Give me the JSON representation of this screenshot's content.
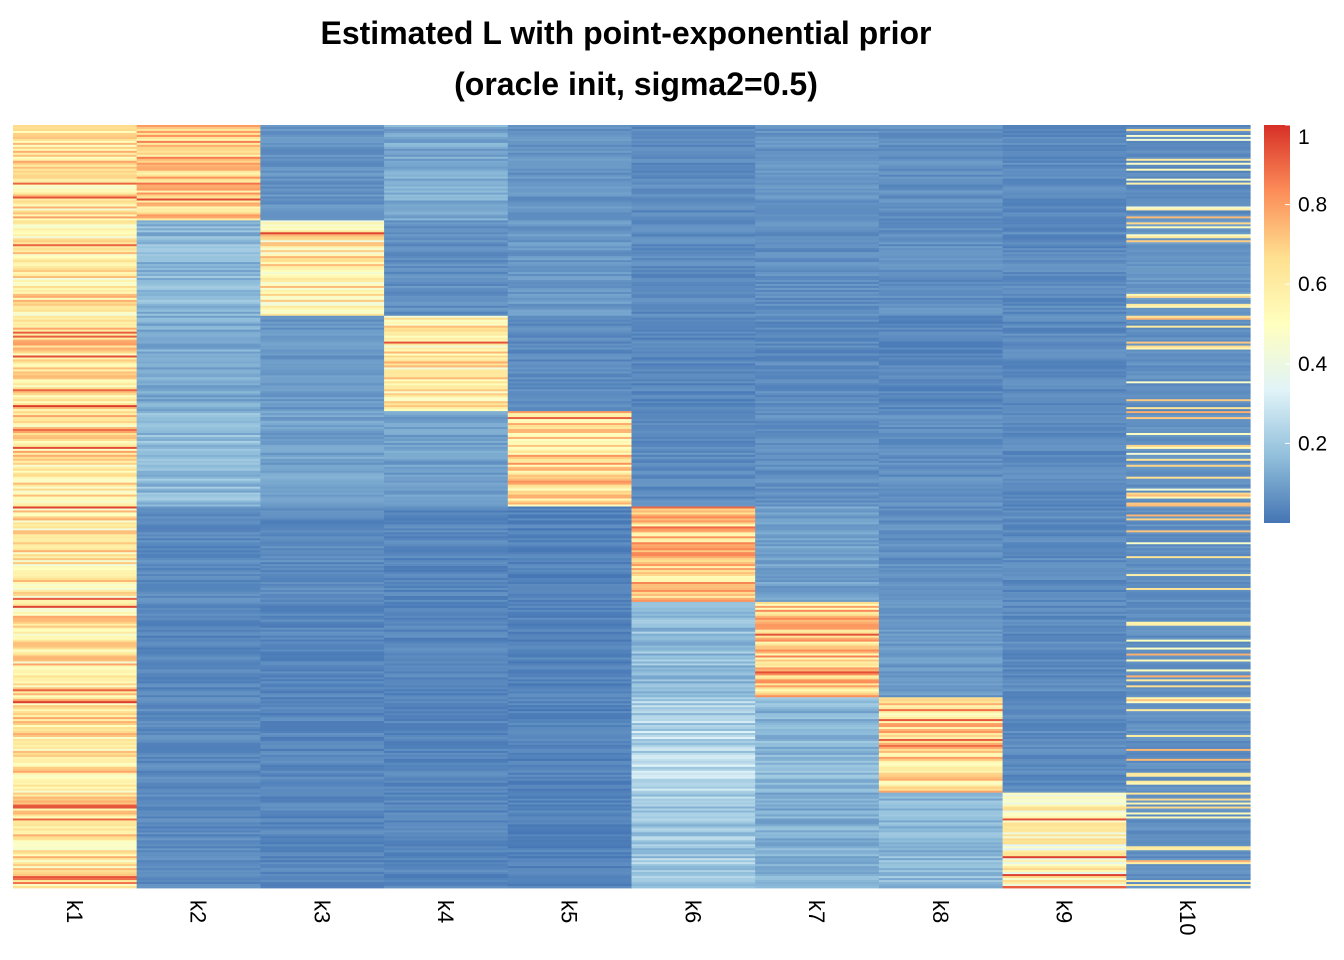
{
  "chart_data": {
    "type": "heatmap",
    "title": "Estimated L with point-exponential prior",
    "subtitle": "(oracle init, sigma2=0.5)",
    "columns": [
      "k1",
      "k2",
      "k3",
      "k4",
      "k5",
      "k6",
      "k7",
      "k8",
      "k9",
      "k10"
    ],
    "row_groups": 8,
    "block_mean_values": [
      [
        0.62,
        0.72,
        0.07,
        0.12,
        0.07,
        0.05,
        0.07,
        0.06,
        0.05,
        0.05
      ],
      [
        0.6,
        0.15,
        0.58,
        0.06,
        0.08,
        0.05,
        0.06,
        0.06,
        0.05,
        0.08
      ],
      [
        0.63,
        0.12,
        0.08,
        0.6,
        0.05,
        0.04,
        0.05,
        0.04,
        0.05,
        0.06
      ],
      [
        0.62,
        0.16,
        0.1,
        0.1,
        0.66,
        0.05,
        0.06,
        0.06,
        0.05,
        0.06
      ],
      [
        0.6,
        0.05,
        0.05,
        0.04,
        0.03,
        0.68,
        0.1,
        0.06,
        0.05,
        0.06
      ],
      [
        0.61,
        0.04,
        0.04,
        0.04,
        0.03,
        0.17,
        0.68,
        0.08,
        0.05,
        0.06
      ],
      [
        0.62,
        0.05,
        0.04,
        0.04,
        0.03,
        0.24,
        0.15,
        0.65,
        0.05,
        0.06
      ],
      [
        0.63,
        0.05,
        0.04,
        0.04,
        0.03,
        0.2,
        0.13,
        0.16,
        0.52,
        0.06
      ]
    ],
    "color_scale": {
      "min": 0,
      "max": 1,
      "colors": [
        "#4575b4",
        "#91bfdb",
        "#e0f3f8",
        "#ffffbf",
        "#fee090",
        "#fc8d59",
        "#d73027"
      ]
    },
    "legend": {
      "position": "right",
      "ticks": [
        "1",
        "0.8",
        "0.6",
        "0.4",
        "0.2"
      ],
      "tick_values": [
        1,
        0.8,
        0.6,
        0.4,
        0.2
      ]
    }
  }
}
